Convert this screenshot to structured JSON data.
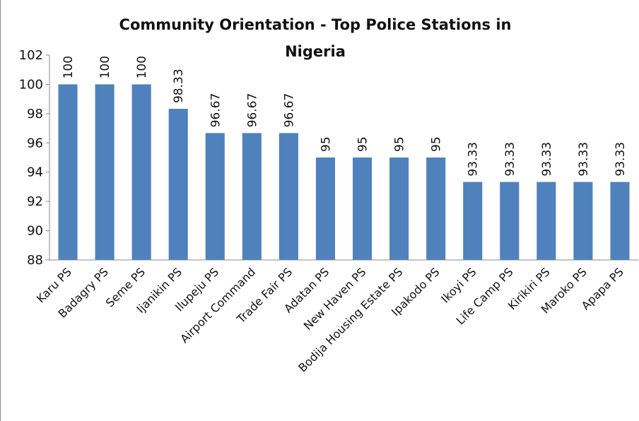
{
  "chart_data": {
    "type": "bar",
    "title_lines": [
      "Community Orientation  - Top Police Stations in",
      "Nigeria"
    ],
    "categories": [
      "Karu PS",
      "Badagry PS",
      "Seme PS",
      "Ijanikin PS",
      "Ilupeju PS",
      "Airport Command",
      "Trade Fair PS",
      "Adatan PS",
      "New Haven PS",
      "Bodija Housing Estate PS",
      "Ipakodo PS",
      "Ikoyi PS",
      "Life Camp PS",
      "Kirikiri PS",
      "Maroko PS",
      "Apapa PS"
    ],
    "values": [
      100,
      100,
      100,
      98.33,
      96.67,
      96.67,
      96.67,
      95,
      95,
      95,
      95,
      93.33,
      93.33,
      93.33,
      93.33,
      93.33
    ],
    "value_labels": [
      "100",
      "100",
      "100",
      "98.33",
      "96.67",
      "96.67",
      "96.67",
      "95",
      "95",
      "95",
      "95",
      "93.33",
      "93.33",
      "93.33",
      "93.33",
      "93.33"
    ],
    "xlabel": "",
    "ylabel": "",
    "ylim": [
      88,
      102
    ],
    "yticks": [
      "88",
      "90",
      "92",
      "94",
      "96",
      "98",
      "100",
      "102"
    ],
    "grid": false,
    "legend": "none",
    "bar_color": "#4F81BD"
  }
}
